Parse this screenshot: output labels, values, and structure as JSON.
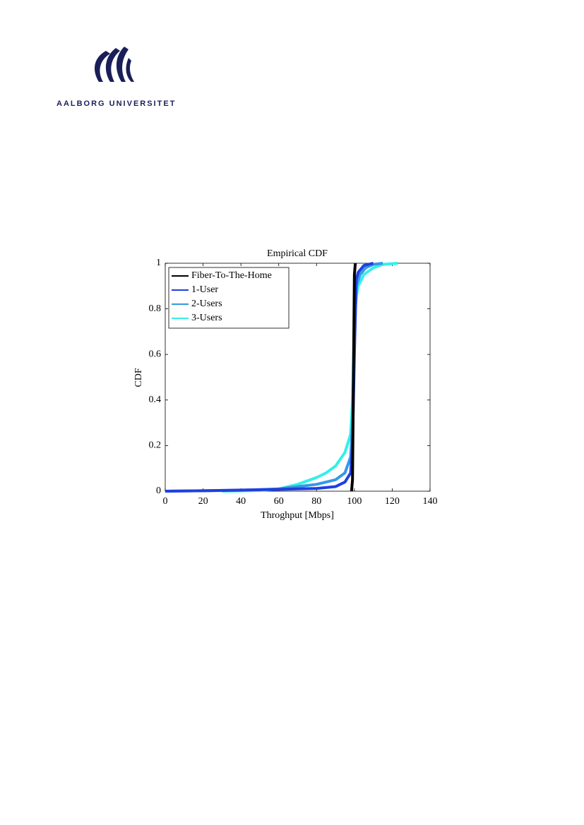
{
  "header": {
    "institution": "AALBORG UNIVERSITET"
  },
  "chart_data": {
    "type": "line",
    "title": "Empirical CDF",
    "x_label": "Throghput [Mbps]",
    "y_label": "CDF",
    "xlim": [
      0,
      140
    ],
    "ylim": [
      0,
      1
    ],
    "xticks": [
      0,
      20,
      40,
      60,
      80,
      100,
      120,
      140
    ],
    "yticks": [
      0,
      0.2,
      0.4,
      0.6,
      0.8,
      1
    ],
    "legend": "upper left",
    "series": [
      {
        "name": "Fiber-To-The-Home",
        "color": "#000000",
        "x": [
          98.5,
          99,
          99.5,
          100,
          100.5
        ],
        "values": [
          0,
          0.05,
          0.5,
          0.95,
          1
        ]
      },
      {
        "name": "1-User",
        "color": "#1f3fe0",
        "x": [
          0,
          20,
          40,
          60,
          80,
          90,
          95,
          98,
          99,
          100,
          101,
          102,
          105,
          110
        ],
        "values": [
          0,
          0.002,
          0.005,
          0.008,
          0.012,
          0.02,
          0.04,
          0.08,
          0.2,
          0.6,
          0.93,
          0.96,
          0.99,
          1
        ]
      },
      {
        "name": "2-Users",
        "color": "#3399e6",
        "x": [
          0,
          40,
          60,
          70,
          80,
          90,
          95,
          98,
          99,
          100,
          101,
          103,
          106,
          110,
          115
        ],
        "values": [
          0,
          0.004,
          0.01,
          0.02,
          0.03,
          0.05,
          0.08,
          0.15,
          0.3,
          0.7,
          0.9,
          0.95,
          0.98,
          0.995,
          1
        ]
      },
      {
        "name": "3-Users",
        "color": "#33f0e8",
        "x": [
          30,
          50,
          60,
          70,
          80,
          85,
          90,
          95,
          98,
          99,
          100,
          101,
          102,
          105,
          110,
          115,
          123
        ],
        "values": [
          0,
          0.003,
          0.01,
          0.03,
          0.06,
          0.08,
          0.11,
          0.17,
          0.25,
          0.4,
          0.75,
          0.85,
          0.9,
          0.95,
          0.98,
          0.995,
          1
        ]
      }
    ]
  }
}
